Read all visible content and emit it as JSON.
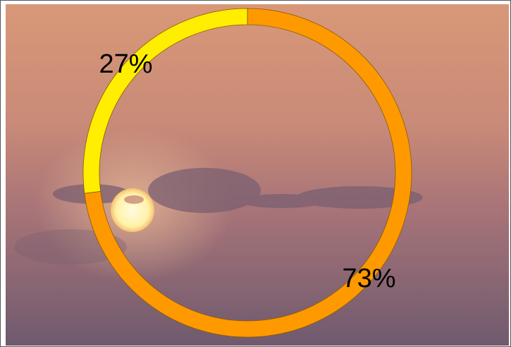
{
  "chart_data": {
    "type": "pie",
    "values": [
      73,
      27
    ],
    "value_labels": [
      "73%",
      "27%"
    ],
    "colors": [
      "#ff9900",
      "#ffee00"
    ],
    "donut": true
  }
}
